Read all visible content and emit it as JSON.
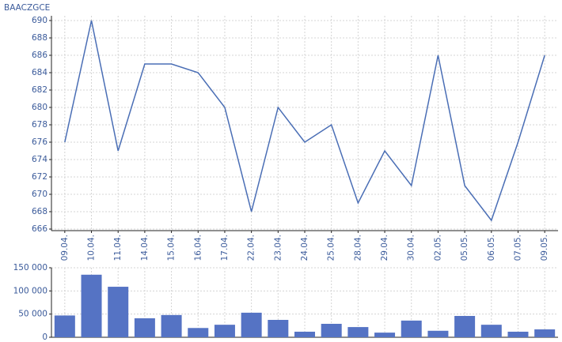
{
  "chart_data": [
    {
      "type": "line",
      "title": "BAACZGCE",
      "categories": [
        "09.04.",
        "10.04.",
        "11.04.",
        "14.04.",
        "15.04.",
        "16.04.",
        "17.04.",
        "22.04.",
        "23.04.",
        "24.04.",
        "25.04.",
        "28.04.",
        "29.04.",
        "30.04.",
        "02.05.",
        "05.05.",
        "06.05.",
        "07.05.",
        "09.05."
      ],
      "values": [
        676,
        690,
        675,
        685,
        685,
        684,
        680,
        668,
        680,
        676,
        678,
        669,
        675,
        671,
        686,
        671,
        667,
        676,
        686
      ],
      "color": "#4a6eb5",
      "ylim": [
        666,
        690
      ],
      "yticks": [
        666,
        668,
        670,
        672,
        674,
        676,
        678,
        680,
        682,
        684,
        686,
        688,
        690
      ],
      "grid": true
    },
    {
      "type": "bar",
      "values": [
        47000,
        135000,
        109000,
        41000,
        48000,
        20000,
        27000,
        53000,
        37500,
        12000,
        29000,
        22000,
        10000,
        36000,
        14000,
        46000,
        27000,
        12000,
        17000
      ],
      "color": "#5573c4",
      "ylim": [
        0,
        150000
      ],
      "yticks": [
        0,
        {
          "value": 50000,
          "label": "50 000"
        },
        {
          "value": 100000,
          "label": "100 000"
        },
        {
          "value": 150000,
          "label": "150 000"
        }
      ],
      "grid": true
    }
  ]
}
